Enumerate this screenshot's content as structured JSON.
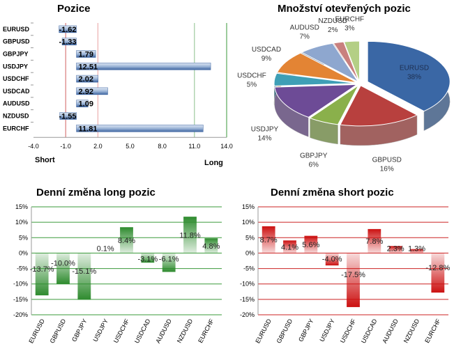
{
  "charts": [
    {
      "id": "positions",
      "type": "bar",
      "orientation": "horizontal",
      "title": "Pozice",
      "categories": [
        "EURUSD",
        "GBPUSD",
        "GBPJPY",
        "USDJPY",
        "USDCHF",
        "USDCAD",
        "AUDUSD",
        "NZDUSD",
        "EURCHF"
      ],
      "values": [
        -1.62,
        -1.33,
        1.79,
        12.51,
        2.02,
        2.92,
        1.09,
        -1.55,
        11.81
      ],
      "value_labels": [
        "-1.62",
        "-1.33",
        "1.79",
        "12.51",
        "2.02",
        "2.92",
        "1.09",
        "-1.55",
        "11.81"
      ],
      "xlim": [
        -4.0,
        14.0
      ],
      "xticks": [
        "-4.0",
        "-1.0",
        "2.0",
        "5.0",
        "8.0",
        "11.0",
        "14.0"
      ],
      "ref_lines": {
        "short": -1.0,
        "neutral": 2.0,
        "long": 11.0
      },
      "left_label": "Short",
      "right_label": "Long",
      "bar_color": "#5b82b8"
    },
    {
      "id": "open_interest",
      "type": "pie",
      "title": "Množství otevřených pozic",
      "slices": [
        {
          "name": "EURUSD",
          "label": "EURUSD",
          "pct": "38%",
          "value": 38,
          "color": "#3a67a5"
        },
        {
          "name": "GBPUSD",
          "label": "GBPUSD",
          "pct": "16%",
          "value": 16,
          "color": "#b8403e"
        },
        {
          "name": "GBPJPY",
          "label": "GBPJPY",
          "pct": "6%",
          "value": 6,
          "color": "#8ab04b"
        },
        {
          "name": "USDJPY",
          "label": "USDJPY",
          "pct": "14%",
          "value": 14,
          "color": "#6d4b96"
        },
        {
          "name": "USDCHF",
          "label": "USDCHF",
          "pct": "5%",
          "value": 5,
          "color": "#3f9fb6"
        },
        {
          "name": "USDCAD",
          "label": "USDCAD",
          "pct": "9%",
          "value": 9,
          "color": "#e38434"
        },
        {
          "name": "AUDUSD",
          "label": "AUDUSD",
          "pct": "7%",
          "value": 7,
          "color": "#8ea7cf"
        },
        {
          "name": "NZDUSD",
          "label": "NZDUSD",
          "pct": "2%",
          "value": 2,
          "color": "#c9807e"
        },
        {
          "name": "EURCHF",
          "label": "EURCHF",
          "pct": "3%",
          "value": 3,
          "color": "#b4cf85"
        }
      ]
    },
    {
      "id": "long_change",
      "type": "bar",
      "title": "Denní změna long pozic",
      "categories": [
        "EURUSD",
        "GBPUSD",
        "GBPJPY",
        "USDJPY",
        "USDCHF",
        "USDCAD",
        "AUDUSD",
        "NZDUSD",
        "EURCHF"
      ],
      "values": [
        -13.7,
        -10.0,
        -15.1,
        0.1,
        8.4,
        -3.1,
        -6.1,
        11.8,
        4.8
      ],
      "value_labels": [
        "-13.7%",
        "-10.0%",
        "-15.1%",
        "0.1%",
        "8.4%",
        "-3.1%",
        "-6.1%",
        "11.8%",
        "4.8%"
      ],
      "ylim": [
        -20,
        15
      ],
      "yticks": [
        "15%",
        "10%",
        "5%",
        "0%",
        "-5%",
        "-10%",
        "-15%",
        "-20%"
      ],
      "bar_color": "#2e8b2e",
      "grid_color": "#3a9a3a"
    },
    {
      "id": "short_change",
      "type": "bar",
      "title": "Denní změna short pozic",
      "categories": [
        "EURUSD",
        "GBPUSD",
        "GBPJPY",
        "USDJPY",
        "USDCHF",
        "USDCAD",
        "AUDUSD",
        "NZDUSD",
        "EURCHF"
      ],
      "values": [
        8.7,
        4.1,
        5.6,
        -4.0,
        -17.5,
        7.8,
        2.3,
        1.3,
        -12.8
      ],
      "value_labels": [
        "8.7%",
        "4.1%",
        "5.6%",
        "-4.0%",
        "-17.5%",
        "7.8%",
        "2.3%",
        "1.3%",
        "-12.8%"
      ],
      "ylim": [
        -20,
        15
      ],
      "yticks": [
        "15%",
        "10%",
        "5%",
        "0%",
        "-5%",
        "-10%",
        "-15%",
        "-20%"
      ],
      "bar_color": "#cc1111",
      "grid_color": "#cc2222"
    }
  ]
}
